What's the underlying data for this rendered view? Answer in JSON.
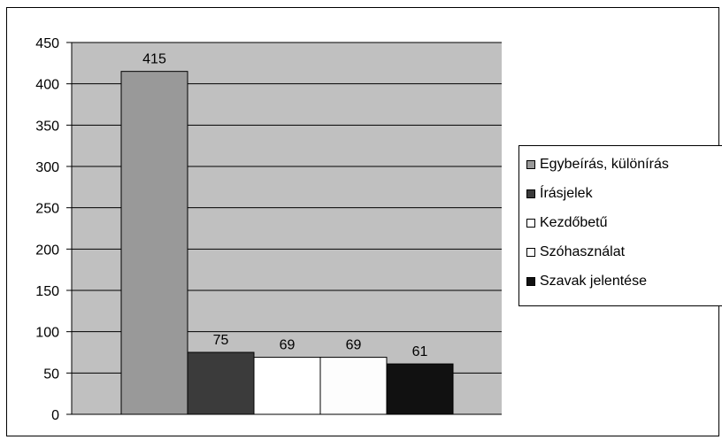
{
  "chart_data": {
    "type": "bar",
    "series": [
      {
        "name": "Egybeírás, különírás",
        "value": 415,
        "color": "#999999"
      },
      {
        "name": "Írásjelek",
        "value": 75,
        "color": "#3b3b3b"
      },
      {
        "name": "Kezdőbetű",
        "value": 69,
        "color": "#ffffff"
      },
      {
        "name": "Szóhasználat",
        "value": 69,
        "color": "#fdfdfd"
      },
      {
        "name": "Szavak jelentése",
        "value": 61,
        "color": "#111111"
      }
    ],
    "ylim": [
      0,
      450
    ],
    "yticks": [
      0,
      50,
      100,
      150,
      200,
      250,
      300,
      350,
      400,
      450
    ],
    "plot_background": "#c0c0c0",
    "grid": true,
    "legend_position": "right",
    "title": "",
    "xlabel": "",
    "ylabel": ""
  }
}
